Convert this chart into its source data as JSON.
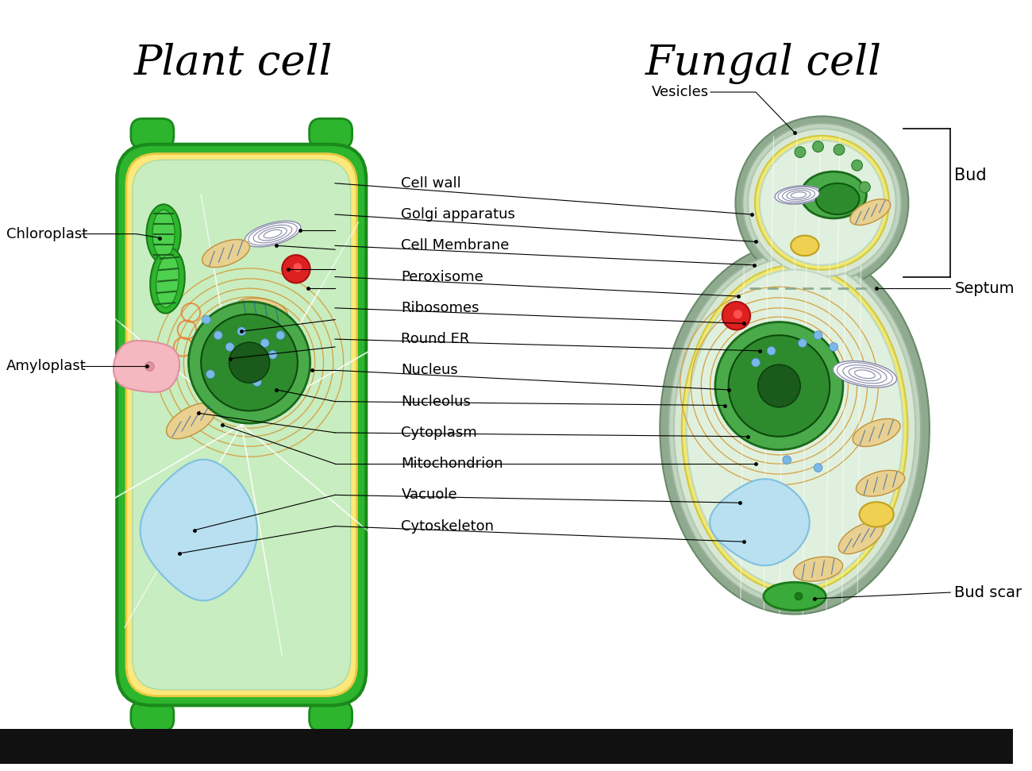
{
  "title_plant": "Plant cell",
  "title_fungal": "Fungal cell",
  "title_fontsize": 38,
  "label_fontsize": 14,
  "bg_color": "#ffffff",
  "black_bar_color": "#111111",
  "plant_cell": {
    "wall_color": "#2db52d",
    "membrane_color": "#fce97a",
    "cytoplasm_color": "#c8edc0",
    "amyloplast_color": "#f5b8c0",
    "vacuole_color": "#b8e0f0",
    "peroxisome_color": "#dd2020",
    "ribosome_color": "#7ab8e8",
    "mitochondria_color": "#e8d090",
    "er_color": "#e88030"
  },
  "fungal_cell": {
    "outer_color": "#8faa8f",
    "wall_color": "#a0b89a",
    "membrane_color": "#f0e870",
    "cytoplasm_color": "#d8e8d5",
    "inner_bg": "#e0f0de",
    "vesicle_color": "#5aaa5a",
    "bud_scar_color": "#3aaa3a",
    "yellow_body_color": "#f0d050",
    "peroxisome_color": "#dd2020",
    "ribosome_color": "#7ab8e8",
    "mitochondria_color": "#e8d090",
    "vacuole_color": "#b8e0f0"
  },
  "labels_shared": [
    [
      "Cell wall",
      5.15,
      7.45,
      4.3,
      6.85,
      3.85,
      6.85,
      9.65,
      7.05
    ],
    [
      "Golgi apparatus",
      5.15,
      7.05,
      4.3,
      6.6,
      3.55,
      6.65,
      9.7,
      6.7
    ],
    [
      "Cell Membrane",
      5.15,
      6.65,
      4.3,
      6.35,
      3.7,
      6.35,
      9.68,
      6.4
    ],
    [
      "Peroxisome",
      5.15,
      6.25,
      4.3,
      6.1,
      3.95,
      6.1,
      9.48,
      6.0
    ],
    [
      "Ribosomes",
      5.15,
      5.85,
      4.3,
      5.7,
      3.1,
      5.55,
      9.55,
      5.65
    ],
    [
      "Round ER",
      5.15,
      5.45,
      4.3,
      5.35,
      2.95,
      5.2,
      9.75,
      5.3
    ],
    [
      "Nucleus",
      5.15,
      5.05,
      4.3,
      5.05,
      4.0,
      5.05,
      9.35,
      4.8
    ],
    [
      "Nucleolus",
      5.15,
      4.65,
      4.3,
      4.65,
      3.55,
      4.8,
      9.3,
      4.6
    ],
    [
      "Cytoplasm",
      5.15,
      4.25,
      4.3,
      4.25,
      2.55,
      4.5,
      9.6,
      4.2
    ],
    [
      "Mitochondrion",
      5.15,
      3.85,
      4.3,
      3.85,
      2.85,
      4.35,
      9.7,
      3.85
    ],
    [
      "Vacuole",
      5.15,
      3.45,
      4.3,
      3.45,
      2.5,
      3.0,
      9.5,
      3.35
    ],
    [
      "Cytoskeleton",
      5.15,
      3.05,
      4.3,
      3.05,
      2.3,
      2.7,
      9.55,
      2.85
    ]
  ]
}
